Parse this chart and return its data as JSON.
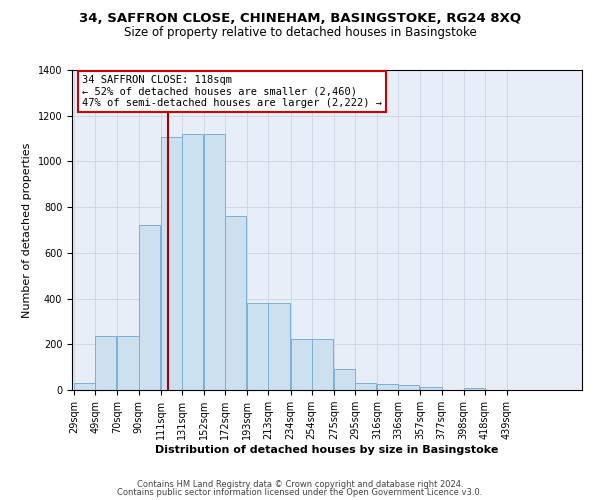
{
  "title1": "34, SAFFRON CLOSE, CHINEHAM, BASINGSTOKE, RG24 8XQ",
  "title2": "Size of property relative to detached houses in Basingstoke",
  "xlabel": "Distribution of detached houses by size in Basingstoke",
  "ylabel": "Number of detached properties",
  "bar_values": [
    30,
    235,
    235,
    720,
    1105,
    1120,
    1120,
    760,
    380,
    380,
    225,
    225,
    90,
    30,
    25,
    20,
    15,
    0,
    10,
    0,
    0,
    0,
    0
  ],
  "bar_left_edges": [
    29,
    49,
    70,
    90,
    111,
    131,
    152,
    172,
    193,
    213,
    234,
    254,
    275,
    295,
    316,
    336,
    357,
    377,
    398,
    418,
    439,
    459,
    480
  ],
  "bin_width": 20,
  "tick_labels": [
    "29sqm",
    "49sqm",
    "70sqm",
    "90sqm",
    "111sqm",
    "131sqm",
    "152sqm",
    "172sqm",
    "193sqm",
    "213sqm",
    "234sqm",
    "254sqm",
    "275sqm",
    "295sqm",
    "316sqm",
    "336sqm",
    "357sqm",
    "377sqm",
    "398sqm",
    "418sqm",
    "439sqm"
  ],
  "bar_color": "#cce0f0",
  "bar_edge_color": "#7ab0d4",
  "vline_x": 118,
  "vline_color": "#aa0000",
  "annotation_line1": "34 SAFFRON CLOSE: 118sqm",
  "annotation_line2": "← 52% of detached houses are smaller (2,460)",
  "annotation_line3": "47% of semi-detached houses are larger (2,222) →",
  "box_edge_color": "#cc0000",
  "ylim": [
    0,
    1400
  ],
  "yticks": [
    0,
    200,
    400,
    600,
    800,
    1000,
    1200,
    1400
  ],
  "grid_color": "#d0d8e8",
  "bg_color": "#e8eef8",
  "footer1": "Contains HM Land Registry data © Crown copyright and database right 2024.",
  "footer2": "Contains public sector information licensed under the Open Government Licence v3.0.",
  "title_fontsize": 9.5,
  "subtitle_fontsize": 8.5,
  "axis_label_fontsize": 8,
  "tick_fontsize": 7,
  "annotation_fontsize": 7.5,
  "footer_fontsize": 6
}
